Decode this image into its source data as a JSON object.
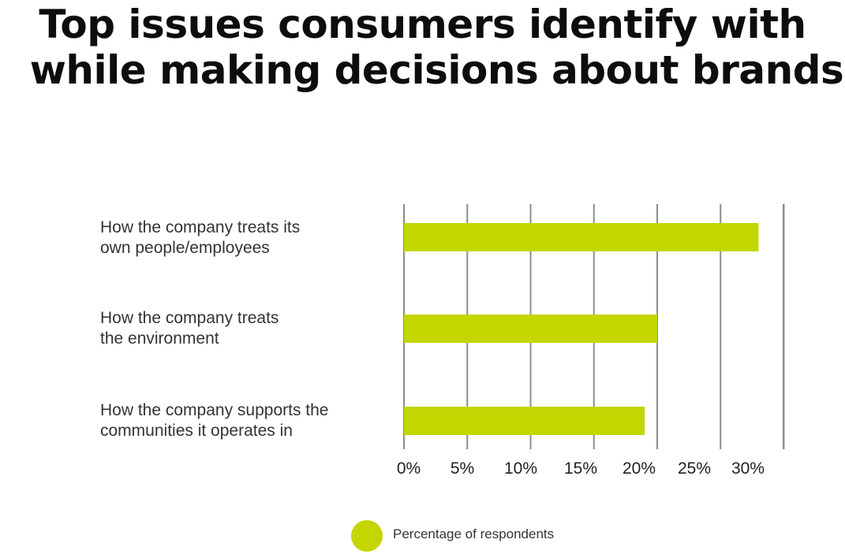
{
  "chart_data": {
    "type": "bar",
    "orientation": "horizontal",
    "title_lines": [
      "Top issues consumers identify with",
      "while making decisions about brands"
    ],
    "categories": [
      [
        "How the company treats its",
        "own people/employees"
      ],
      [
        "How the company treats",
        "the environment"
      ],
      [
        "How the company supports the",
        "communities it operates in"
      ]
    ],
    "series": [
      {
        "name": "Percentage of respondents",
        "values": [
          28,
          20,
          19
        ]
      }
    ],
    "xlim": [
      0,
      30
    ],
    "x_ticks": [
      "0%",
      "5%",
      "10%",
      "15%",
      "20%",
      "25%",
      "30%"
    ],
    "grid": true,
    "legend_position": "bottom",
    "bar_color": "#c4d600",
    "grid_color": "#8c8c8c"
  }
}
